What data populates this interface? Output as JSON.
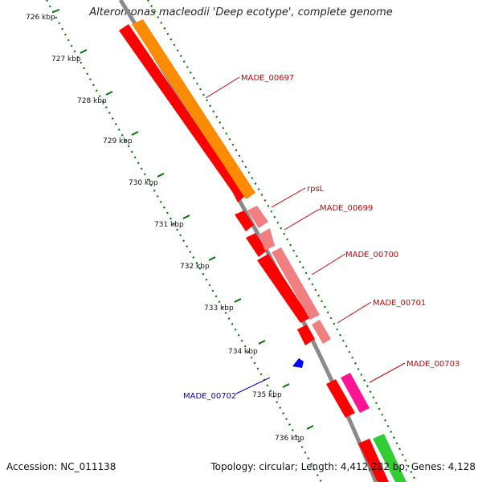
{
  "title": "Alteromonas macleodii 'Deep ecotype', complete genome",
  "footer": {
    "accession": "Accession: NC_011138",
    "stats": "Topology: circular; Length: 4,412,282 bp; Genes: 4,128"
  },
  "ticks": [
    {
      "label": "726 kbp"
    },
    {
      "label": "727 kbp"
    },
    {
      "label": "728 kbp"
    },
    {
      "label": "729 kbp"
    },
    {
      "label": "730 kbp"
    },
    {
      "label": "731 kbp"
    },
    {
      "label": "732 kbp"
    },
    {
      "label": "733 kbp"
    },
    {
      "label": "734 kbp"
    },
    {
      "label": "735 kbp"
    },
    {
      "label": "736 kbp"
    }
  ],
  "gene_labels": [
    {
      "name": "MADE_00697",
      "color": "#cc0000"
    },
    {
      "name": "rpsL",
      "color": "#cc0000"
    },
    {
      "name": "MADE_00699",
      "color": "#cc0000"
    },
    {
      "name": "MADE_00700",
      "color": "#cc0000"
    },
    {
      "name": "MADE_00701",
      "color": "#cc0000"
    },
    {
      "name": "MADE_00703",
      "color": "#cc0000"
    },
    {
      "name": "MADE_00702",
      "color": "#0000cc"
    }
  ],
  "colors": {
    "backbone": "#8a8a8a",
    "cds": "#ff0000",
    "orange_feature": "#ff8c00",
    "pink_feature": "#f08080",
    "magenta_feature": "#ff1493",
    "green_feature": "#32cd32",
    "reverse_feature": "#0000ff",
    "tick": "#007700"
  }
}
